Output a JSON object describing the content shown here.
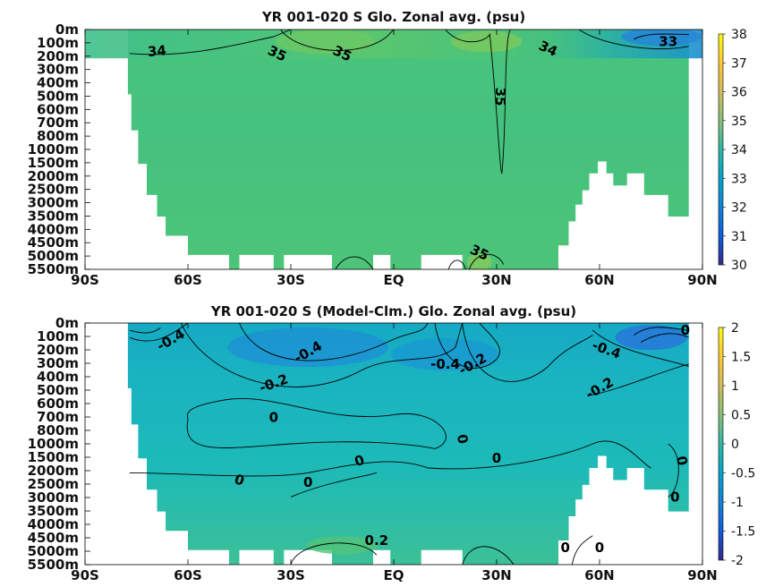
{
  "chart_data": [
    {
      "type": "heatmap",
      "title": "YR 001-020 S Glo. Zonal avg. (psu)",
      "x_ticks": [
        "90S",
        "60S",
        "30S",
        "EQ",
        "30N",
        "60N",
        "90N"
      ],
      "x_values": [
        -90,
        -60,
        -30,
        0,
        30,
        60,
        90
      ],
      "y_ticks": [
        "0m",
        "100m",
        "200m",
        "300m",
        "400m",
        "500m",
        "600m",
        "700m",
        "800m",
        "1000m",
        "1500m",
        "2000m",
        "2500m",
        "3000m",
        "3500m",
        "4000m",
        "4500m",
        "5000m",
        "5500m"
      ],
      "colorbar": {
        "min": 30,
        "max": 38,
        "ticks": [
          "30",
          "31",
          "32",
          "33",
          "34",
          "35",
          "36",
          "37",
          "38"
        ]
      },
      "contour_labels": [
        "34",
        "35",
        "35",
        "35",
        "34",
        "33",
        "35"
      ],
      "description_values": {
        "typical_salinity": 34.7
      }
    },
    {
      "type": "heatmap",
      "title": "YR 001-020 S (Model-Clm.) Glo. Zonal avg. (psu)",
      "x_ticks": [
        "90S",
        "60S",
        "30S",
        "EQ",
        "30N",
        "60N",
        "90N"
      ],
      "x_values": [
        -90,
        -60,
        -30,
        0,
        30,
        60,
        90
      ],
      "y_ticks": [
        "0m",
        "100m",
        "200m",
        "300m",
        "400m",
        "500m",
        "600m",
        "700m",
        "800m",
        "1000m",
        "1500m",
        "2000m",
        "2500m",
        "3000m",
        "3500m",
        "4000m",
        "4500m",
        "5000m",
        "5500m"
      ],
      "colorbar": {
        "min": -2,
        "max": 2,
        "ticks": [
          "-2",
          "-1.5",
          "-1",
          "-0.5",
          "0",
          "0.5",
          "1",
          "1.5",
          "2"
        ]
      },
      "contour_labels": [
        "-0.4",
        "-0.4",
        "-0.2",
        "-0.4",
        "-0.2",
        "-0.4",
        "0",
        "-0.2",
        "0",
        "0",
        "0",
        "0",
        "0",
        "0",
        "0",
        "0",
        "0",
        "0.2",
        "0"
      ]
    }
  ],
  "colors": {
    "parula_stops": [
      "#352a87",
      "#0f5cdd",
      "#1481d6",
      "#06a4ca",
      "#2eb7a4",
      "#87bf77",
      "#d1bb59",
      "#fec832",
      "#f9fb0e"
    ]
  }
}
